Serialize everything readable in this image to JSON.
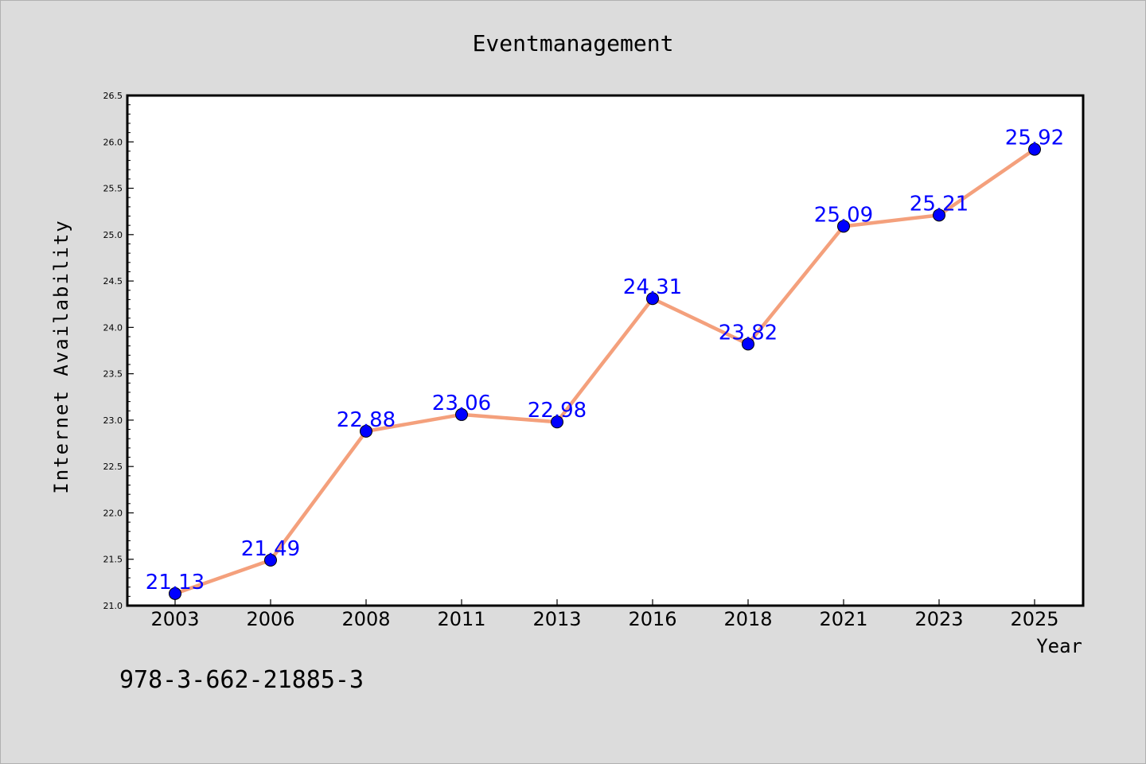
{
  "chart_data": {
    "type": "line",
    "title": "Eventmanagement",
    "xlabel": "Year",
    "ylabel": "Internet Availability",
    "categories": [
      "2003",
      "2006",
      "2008",
      "2011",
      "2013",
      "2016",
      "2018",
      "2021",
      "2023",
      "2025"
    ],
    "series": [
      {
        "values": [
          21.13,
          21.49,
          22.88,
          23.06,
          22.98,
          24.31,
          23.82,
          25.09,
          25.21,
          25.92
        ],
        "data_labels": [
          "21.13",
          "21.49",
          "22.88",
          "23.06",
          "22.98",
          "24.31",
          "23.82",
          "25.09",
          "25.21",
          "25.92"
        ],
        "line_color": "#f4a07c",
        "marker_color": "#0000ff"
      }
    ],
    "ylim": [
      21.0,
      26.5
    ],
    "yticks": [
      "21.0",
      "21.5",
      "22.0",
      "22.5",
      "23.0",
      "23.5",
      "24.0",
      "24.5",
      "25.0",
      "25.5",
      "26.0",
      "26.5"
    ],
    "grid": false,
    "legend": "none"
  },
  "footnote": "978-3-662-21885-3",
  "colors": {
    "background": "#dcdcdc",
    "plot_background": "#ffffff",
    "label_color": "#0000ff"
  }
}
